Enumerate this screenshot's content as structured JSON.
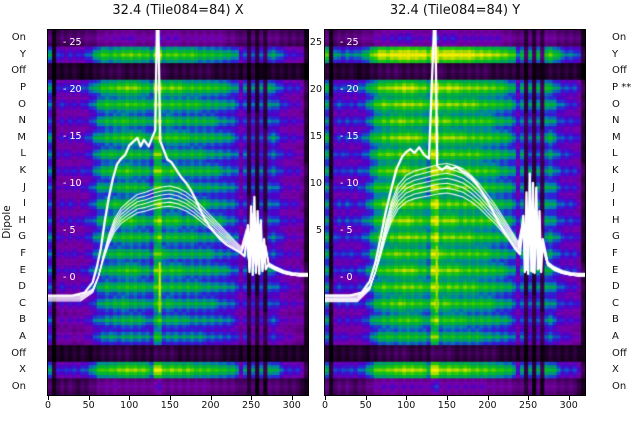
{
  "titles": {
    "left": "32.4 (Tile084=84) X",
    "right": "32.4 (Tile084=84) Y"
  },
  "dipole_axis": {
    "label": "Dipole",
    "left_labels": [
      "On",
      "Y",
      "Off",
      "P",
      "O",
      "N",
      "M",
      "L",
      "K",
      "J",
      "I",
      "H",
      "G",
      "F",
      "E",
      "D",
      "C",
      "B",
      "A",
      "Off",
      "X",
      "On"
    ],
    "right_labels": [
      "On",
      "Y",
      "Off",
      "P **",
      "O",
      "N",
      "M",
      "L",
      "K",
      "J",
      "I",
      "H",
      "G",
      "F",
      "E",
      "D",
      "C",
      "B",
      "A",
      "Off",
      "X",
      "On"
    ]
  },
  "x_axis": {
    "ticks": [
      0,
      50,
      100,
      150,
      200,
      250,
      300
    ],
    "max": 320
  },
  "value_axis": {
    "vmin": -12.6,
    "vmax": 26.3,
    "inner_ticks": [
      {
        "value": 25,
        "label": "- 25"
      },
      {
        "value": 20,
        "label": "- 20"
      },
      {
        "value": 15,
        "label": "- 15"
      },
      {
        "value": 10,
        "label": "- 10"
      },
      {
        "value": 5,
        "label": "- 5"
      },
      {
        "value": 0,
        "label": "- 0"
      }
    ],
    "gap_ticks": [
      {
        "value": 25,
        "label": "25"
      },
      {
        "value": 20,
        "label": "20"
      },
      {
        "value": 15,
        "label": "15"
      },
      {
        "value": 10,
        "label": "10"
      },
      {
        "value": 5,
        "label": "5"
      }
    ]
  },
  "colors": {
    "curve": "#ffffff",
    "text": "#111111",
    "inner_tick_text": "#ffffff",
    "background": "#ffffff"
  },
  "chart_data": {
    "type": "heatmap",
    "x_max": 320,
    "colormap_stops": [
      [
        0.0,
        "#000000"
      ],
      [
        0.1,
        "#2a0038"
      ],
      [
        0.22,
        "#5c0080"
      ],
      [
        0.32,
        "#7a00aa"
      ],
      [
        0.4,
        "#5000c8"
      ],
      [
        0.48,
        "#2828d8"
      ],
      [
        0.56,
        "#0080b0"
      ],
      [
        0.62,
        "#00a060"
      ],
      [
        0.7,
        "#00b830"
      ],
      [
        0.8,
        "#30cc00"
      ],
      [
        0.88,
        "#9cd800"
      ],
      [
        1.0,
        "#f4ee00"
      ]
    ],
    "col_profile": [
      0.5,
      0.06,
      0.3,
      0.32,
      0.3,
      0.33,
      0.31,
      0.3,
      0.33,
      0.36,
      0.42,
      0.52,
      0.62,
      0.68,
      0.71,
      0.7,
      0.73,
      0.74,
      0.76,
      0.78,
      0.77,
      0.75,
      0.73,
      0.71,
      0.69,
      0.6,
      0.9,
      0.95,
      0.72,
      0.74,
      0.76,
      0.74,
      0.72,
      0.7,
      0.72,
      0.71,
      0.7,
      0.69,
      0.68,
      0.67,
      0.65,
      0.63,
      0.61,
      0.58,
      0.56,
      0.53,
      0.48,
      0.28,
      0.46,
      0.12,
      0.44,
      0.1,
      0.45,
      0.13,
      0.5,
      0.52,
      0.46,
      0.38,
      0.33,
      0.31,
      0.3,
      0.29,
      0.22,
      0.1
    ],
    "panels": [
      {
        "name": "X",
        "row_levels": [
          0.34,
          0.78,
          0.13,
          0.8,
          0.74,
          0.7,
          0.74,
          0.7,
          0.73,
          0.69,
          0.71,
          0.73,
          0.7,
          0.68,
          0.72,
          0.7,
          0.67,
          0.64,
          0.6,
          0.13,
          0.82,
          0.3
        ],
        "hot_cells": [
          [
            14,
            27,
            0.95
          ],
          [
            15,
            27,
            0.97
          ],
          [
            16,
            27,
            0.88
          ]
        ],
        "cluster_count": 6,
        "main_curve": [
          [
            0,
            -2.0
          ],
          [
            30,
            -2.0
          ],
          [
            45,
            -1.7
          ],
          [
            55,
            -0.6
          ],
          [
            60,
            1.0
          ],
          [
            65,
            3.0
          ],
          [
            70,
            6.0
          ],
          [
            75,
            8.5
          ],
          [
            80,
            10.5
          ],
          [
            85,
            12.0
          ],
          [
            90,
            12.6
          ],
          [
            95,
            13.0
          ],
          [
            100,
            14.0
          ],
          [
            105,
            14.4
          ],
          [
            110,
            14.8
          ],
          [
            114,
            13.9
          ],
          [
            118,
            14.6
          ],
          [
            124,
            13.9
          ],
          [
            128,
            14.8
          ],
          [
            132,
            15.6
          ],
          [
            134,
            26.3
          ],
          [
            136,
            26.3
          ],
          [
            138,
            14.5
          ],
          [
            142,
            13.6
          ],
          [
            147,
            12.5
          ],
          [
            152,
            12.2
          ],
          [
            158,
            11.4
          ],
          [
            164,
            10.6
          ],
          [
            170,
            10.0
          ],
          [
            176,
            9.2
          ],
          [
            182,
            8.2
          ],
          [
            188,
            7.0
          ],
          [
            194,
            6.0
          ],
          [
            200,
            5.2
          ],
          [
            206,
            4.6
          ],
          [
            212,
            4.0
          ],
          [
            220,
            3.4
          ],
          [
            228,
            3.0
          ],
          [
            236,
            2.6
          ],
          [
            242,
            2.2
          ],
          [
            246,
            5.5
          ],
          [
            248,
            0.5
          ],
          [
            250,
            7.5
          ],
          [
            252,
            0.2
          ],
          [
            254,
            8.5
          ],
          [
            256,
            0.5
          ],
          [
            258,
            7.0
          ],
          [
            260,
            0.3
          ],
          [
            262,
            6.0
          ],
          [
            264,
            0.6
          ],
          [
            266,
            4.0
          ],
          [
            268,
            0.8
          ],
          [
            272,
            1.4
          ],
          [
            280,
            1.0
          ],
          [
            290,
            0.6
          ],
          [
            300,
            0.4
          ],
          [
            310,
            0.3
          ],
          [
            320,
            0.3
          ]
        ],
        "cluster_curve": [
          [
            0,
            -2.3
          ],
          [
            40,
            -2.3
          ],
          [
            55,
            -1.5
          ],
          [
            62,
            0.0
          ],
          [
            68,
            2.0
          ],
          [
            75,
            4.0
          ],
          [
            82,
            5.5
          ],
          [
            90,
            6.5
          ],
          [
            100,
            7.2
          ],
          [
            110,
            7.8
          ],
          [
            120,
            8.0
          ],
          [
            130,
            8.3
          ],
          [
            140,
            8.5
          ],
          [
            150,
            8.6
          ],
          [
            160,
            8.4
          ],
          [
            170,
            8.0
          ],
          [
            180,
            7.4
          ],
          [
            190,
            6.6
          ],
          [
            200,
            5.8
          ],
          [
            210,
            5.0
          ],
          [
            220,
            4.2
          ],
          [
            230,
            3.4
          ],
          [
            238,
            2.8
          ],
          [
            244,
            4.5
          ],
          [
            248,
            0.8
          ],
          [
            252,
            6.0
          ],
          [
            256,
            0.4
          ],
          [
            260,
            5.0
          ],
          [
            264,
            0.8
          ],
          [
            268,
            3.0
          ],
          [
            272,
            1.2
          ],
          [
            280,
            0.8
          ],
          [
            290,
            0.4
          ],
          [
            300,
            0.2
          ],
          [
            310,
            0.1
          ],
          [
            320,
            0.1
          ]
        ]
      },
      {
        "name": "Y",
        "row_levels": [
          0.4,
          1.0,
          0.15,
          0.88,
          0.84,
          0.8,
          0.84,
          0.8,
          0.82,
          0.8,
          0.82,
          0.84,
          0.82,
          0.8,
          0.82,
          0.8,
          0.78,
          0.74,
          0.7,
          0.15,
          0.86,
          0.36
        ],
        "hot_cells": [
          [
            13,
            27,
            0.9
          ],
          [
            14,
            27,
            0.95
          ],
          [
            15,
            27,
            0.9
          ],
          [
            16,
            27,
            0.85
          ]
        ],
        "cluster_count": 7,
        "main_curve": [
          [
            0,
            -2.0
          ],
          [
            30,
            -2.0
          ],
          [
            45,
            -1.7
          ],
          [
            55,
            -0.5
          ],
          [
            62,
            1.5
          ],
          [
            68,
            4.0
          ],
          [
            75,
            7.0
          ],
          [
            82,
            9.5
          ],
          [
            88,
            11.5
          ],
          [
            95,
            12.8
          ],
          [
            100,
            13.3
          ],
          [
            105,
            13.6
          ],
          [
            110,
            13.2
          ],
          [
            116,
            13.8
          ],
          [
            122,
            13.0
          ],
          [
            128,
            12.6
          ],
          [
            134,
            26.3
          ],
          [
            136,
            26.3
          ],
          [
            138,
            11.8
          ],
          [
            144,
            11.4
          ],
          [
            150,
            11.8
          ],
          [
            156,
            11.5
          ],
          [
            162,
            11.7
          ],
          [
            168,
            11.3
          ],
          [
            174,
            11.0
          ],
          [
            180,
            10.6
          ],
          [
            186,
            10.0
          ],
          [
            192,
            9.2
          ],
          [
            198,
            8.4
          ],
          [
            204,
            7.4
          ],
          [
            210,
            6.4
          ],
          [
            216,
            5.4
          ],
          [
            222,
            4.6
          ],
          [
            228,
            3.8
          ],
          [
            234,
            3.0
          ],
          [
            240,
            2.4
          ],
          [
            244,
            6.5
          ],
          [
            246,
            0.5
          ],
          [
            248,
            9.0
          ],
          [
            250,
            0.3
          ],
          [
            252,
            11.0
          ],
          [
            254,
            0.6
          ],
          [
            256,
            10.0
          ],
          [
            258,
            0.4
          ],
          [
            260,
            9.5
          ],
          [
            262,
            0.8
          ],
          [
            264,
            7.0
          ],
          [
            266,
            0.5
          ],
          [
            268,
            4.0
          ],
          [
            274,
            1.5
          ],
          [
            282,
            1.0
          ],
          [
            292,
            0.6
          ],
          [
            302,
            0.4
          ],
          [
            312,
            0.3
          ],
          [
            320,
            0.3
          ]
        ],
        "cluster_curve": [
          [
            0,
            -2.3
          ],
          [
            40,
            -2.3
          ],
          [
            55,
            -1.2
          ],
          [
            62,
            0.5
          ],
          [
            68,
            2.5
          ],
          [
            75,
            5.0
          ],
          [
            82,
            7.0
          ],
          [
            90,
            8.5
          ],
          [
            100,
            9.4
          ],
          [
            110,
            9.8
          ],
          [
            120,
            10.0
          ],
          [
            130,
            10.2
          ],
          [
            140,
            10.4
          ],
          [
            150,
            10.5
          ],
          [
            160,
            10.3
          ],
          [
            170,
            10.0
          ],
          [
            180,
            9.4
          ],
          [
            190,
            8.6
          ],
          [
            200,
            7.6
          ],
          [
            210,
            6.6
          ],
          [
            220,
            5.4
          ],
          [
            230,
            4.2
          ],
          [
            238,
            3.2
          ],
          [
            244,
            5.5
          ],
          [
            248,
            0.8
          ],
          [
            252,
            7.0
          ],
          [
            256,
            0.5
          ],
          [
            260,
            6.0
          ],
          [
            264,
            1.0
          ],
          [
            268,
            3.5
          ],
          [
            274,
            1.4
          ],
          [
            282,
            0.8
          ],
          [
            292,
            0.4
          ],
          [
            302,
            0.2
          ],
          [
            312,
            0.1
          ],
          [
            320,
            0.1
          ]
        ]
      }
    ]
  }
}
